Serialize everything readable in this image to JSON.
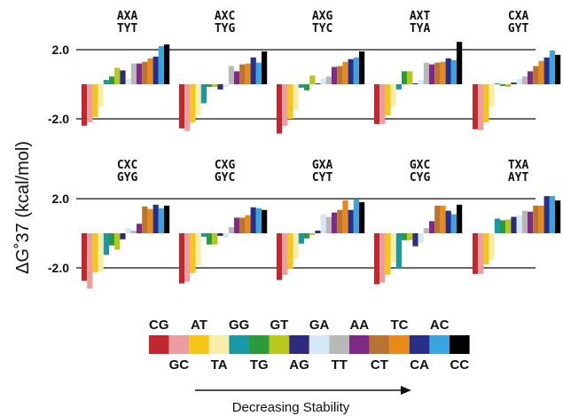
{
  "chart_data": {
    "type": "bar",
    "ylabel": "ΔG˚37 (kcal/mol)",
    "yticks": [
      {
        "value": 2.0,
        "label": "2.0"
      },
      {
        "value": -2.0,
        "label": "-2.0"
      }
    ],
    "categories": [
      "CG",
      "GC",
      "AT",
      "TA",
      "GG",
      "TG",
      "GT",
      "AG",
      "GA",
      "TT",
      "AA",
      "CT",
      "TC",
      "CA",
      "AC",
      "CC"
    ],
    "colors": [
      "#c0282d",
      "#ea9ea1",
      "#f5c518",
      "#f8eeaa",
      "#1a98a8",
      "#2a9a3a",
      "#b6c81a",
      "#2e2a7c",
      "#d4e8f6",
      "#b8b8b8",
      "#7e2a86",
      "#b87430",
      "#e78a1a",
      "#2a2e86",
      "#38a4e0",
      "#000000"
    ],
    "panels": [
      {
        "name": "AXA/TYT",
        "line1": "AXA",
        "line2": "TYT",
        "values": [
          -2.4,
          -2.2,
          -1.9,
          -1.3,
          0.25,
          0.45,
          0.95,
          0.8,
          0.3,
          1.2,
          1.2,
          1.3,
          1.5,
          1.6,
          2.2,
          2.3
        ]
      },
      {
        "name": "AXC/TYG",
        "line1": "AXC",
        "line2": "TYG",
        "values": [
          -2.55,
          -2.7,
          -2.2,
          -1.75,
          -1.1,
          -0.15,
          -0.15,
          -0.3,
          -0.15,
          1.05,
          0.75,
          1.15,
          1.2,
          1.55,
          1.25,
          1.9
        ]
      },
      {
        "name": "AXG/TYC",
        "line1": "AXG",
        "line2": "TYC",
        "values": [
          -2.85,
          -2.4,
          -2.0,
          -1.5,
          -0.2,
          -0.35,
          0.5,
          0.05,
          0.3,
          0.45,
          1.0,
          1.05,
          1.3,
          1.45,
          1.55,
          1.9
        ]
      },
      {
        "name": "AXT/TYA",
        "line1": "AXT",
        "line2": "TYA",
        "values": [
          -2.3,
          -2.3,
          -1.8,
          -1.3,
          -0.3,
          0.75,
          0.75,
          0.05,
          0.25,
          1.25,
          1.15,
          1.25,
          1.3,
          1.5,
          1.4,
          2.45
        ]
      },
      {
        "name": "CXA/GYT",
        "line1": "CXA",
        "line2": "GYT",
        "values": [
          -2.6,
          -2.65,
          -2.2,
          -1.3,
          0.05,
          -0.1,
          -0.15,
          0.1,
          0.3,
          0.45,
          0.75,
          1.05,
          1.35,
          1.55,
          1.95,
          1.7
        ]
      },
      {
        "name": "CXC/GYG",
        "line1": "CXC",
        "line2": "GYG",
        "values": [
          -2.75,
          -3.2,
          -2.25,
          -2.2,
          -1.25,
          -0.7,
          -0.95,
          -0.35,
          0.3,
          0.15,
          0.55,
          1.55,
          1.4,
          1.65,
          1.45,
          1.6
        ]
      },
      {
        "name": "CXG/GYC",
        "line1": "CXG",
        "line2": "GYC",
        "values": [
          -2.9,
          -2.8,
          -2.3,
          -1.85,
          -0.2,
          -0.65,
          -0.65,
          -0.15,
          -0.25,
          0.35,
          0.9,
          0.9,
          1.05,
          1.5,
          1.45,
          1.35
        ]
      },
      {
        "name": "GXA/CYT",
        "line1": "GXA",
        "line2": "CYT",
        "values": [
          -2.7,
          -2.4,
          -2.05,
          -1.45,
          -0.6,
          -0.3,
          -0.1,
          0.15,
          1.1,
          0.95,
          1.2,
          1.35,
          1.9,
          1.35,
          1.95,
          1.8
        ]
      },
      {
        "name": "GXC/CYG",
        "line1": "GXC",
        "line2": "CYG",
        "values": [
          -2.95,
          -2.85,
          -2.4,
          -1.7,
          -2.05,
          -0.4,
          -0.4,
          -0.75,
          -0.55,
          0.3,
          0.7,
          1.6,
          1.6,
          1.3,
          1.1,
          1.65
        ]
      },
      {
        "name": "TXA/AYT",
        "line1": "TXA",
        "line2": "AYT",
        "values": [
          -2.35,
          -2.35,
          -1.8,
          -1.55,
          0.85,
          0.75,
          0.8,
          0.95,
          1.05,
          1.3,
          1.25,
          1.6,
          1.6,
          2.15,
          2.15,
          1.9
        ]
      }
    ],
    "legend": {
      "top_labels": [
        "CG",
        "AT",
        "GG",
        "GT",
        "GA",
        "AA",
        "TC",
        "AC"
      ],
      "bottom_labels": [
        "GC",
        "TA",
        "TG",
        "AG",
        "TT",
        "CT",
        "CA",
        "CC"
      ]
    },
    "caption": "Decreasing Stability"
  }
}
